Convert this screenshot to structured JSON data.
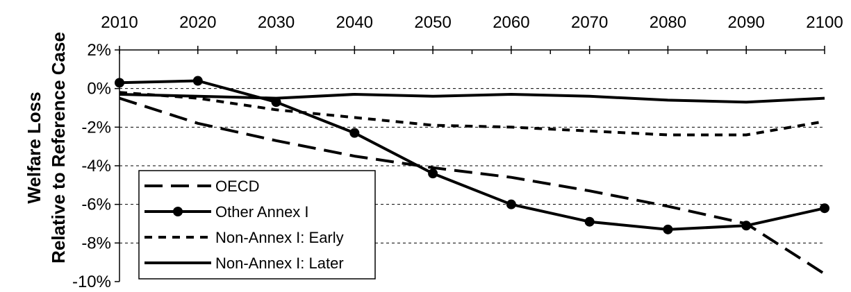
{
  "chart_data": {
    "type": "line",
    "title": "",
    "ylabel_line1": "Welfare Loss",
    "ylabel_line2": "Relative to Reference Case",
    "xlabel": "",
    "x": [
      2010,
      2020,
      2030,
      2040,
      2050,
      2060,
      2070,
      2080,
      2090,
      2100
    ],
    "x_tick_labels": [
      "2010",
      "2020",
      "2030",
      "2040",
      "2050",
      "2060",
      "2070",
      "2080",
      "2090",
      "2100"
    ],
    "x_axis_position": "top",
    "ylim": [
      -10,
      2
    ],
    "y_ticks": [
      2,
      0,
      -2,
      -4,
      -6,
      -8,
      -10
    ],
    "y_tick_labels": [
      "2%",
      "0%",
      "-2%",
      "-4%",
      "-6%",
      "-8%",
      "-10%"
    ],
    "grid": "horizontal dashed",
    "legend_position": "bottom-left",
    "series": [
      {
        "name": "OECD",
        "style": "long-dash",
        "marker": "none",
        "color": "#000000",
        "values": [
          -0.5,
          -1.8,
          -2.7,
          -3.5,
          -4.1,
          -4.6,
          -5.3,
          -6.1,
          -7.0,
          -9.6
        ]
      },
      {
        "name": "Other Annex I",
        "style": "solid",
        "marker": "circle",
        "color": "#000000",
        "values": [
          0.3,
          0.4,
          -0.7,
          -2.3,
          -4.4,
          -6.0,
          -6.9,
          -7.3,
          -7.1,
          -6.2
        ]
      },
      {
        "name": "Non-Annex I: Early",
        "style": "short-dash",
        "marker": "none",
        "color": "#000000",
        "values": [
          -0.2,
          -0.5,
          -1.1,
          -1.5,
          -1.9,
          -2.0,
          -2.2,
          -2.4,
          -2.4,
          -1.7
        ]
      },
      {
        "name": "Non-Annex I: Later",
        "style": "solid",
        "marker": "none",
        "color": "#000000",
        "values": [
          -0.3,
          -0.4,
          -0.5,
          -0.3,
          -0.4,
          -0.3,
          -0.4,
          -0.6,
          -0.7,
          -0.5
        ]
      }
    ]
  }
}
